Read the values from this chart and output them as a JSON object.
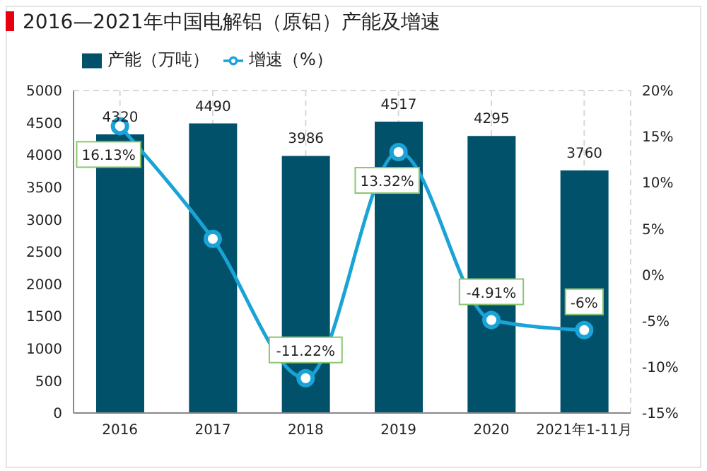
{
  "chart_data": {
    "type": "bar",
    "title": "2016—2021年中国电解铝（原铝）产能及增速",
    "categories": [
      "2016",
      "2017",
      "2018",
      "2019",
      "2020",
      "2021年1-11月"
    ],
    "series": [
      {
        "name": "产能（万吨）",
        "color": "#02516b",
        "values": [
          4320,
          4490,
          3986,
          4517,
          4295,
          3760
        ],
        "value_labels": [
          "4320",
          "4490",
          "3986",
          "4517",
          "4295",
          "3760"
        ]
      },
      {
        "name": "增速（%）",
        "type": "line",
        "axis": "y2",
        "color": "#1aa3d6",
        "values": [
          16.13,
          3.9,
          -11.22,
          13.32,
          -4.91,
          -6
        ],
        "value_labels": [
          "16.13%",
          null,
          "-11.22%",
          "13.32%",
          "-4.91%",
          "-6%"
        ]
      }
    ],
    "ylim": [
      0,
      5000
    ],
    "yticks": [
      0,
      500,
      1000,
      1500,
      2000,
      2500,
      3000,
      3500,
      4000,
      4500,
      5000
    ],
    "y2lim": [
      -15,
      20
    ],
    "y2ticks": [
      {
        "value": -15,
        "label": "-15%"
      },
      {
        "value": -10,
        "label": "-10%"
      },
      {
        "value": -5,
        "label": "-5%"
      },
      {
        "value": 0,
        "label": "0%"
      },
      {
        "value": 5,
        "label": "5%"
      },
      {
        "value": 10,
        "label": "10%"
      },
      {
        "value": 15,
        "label": "15%"
      },
      {
        "value": 20,
        "label": "20%"
      }
    ],
    "grid": true,
    "legend": "top left",
    "marker": "circle",
    "line_style": "solid"
  }
}
